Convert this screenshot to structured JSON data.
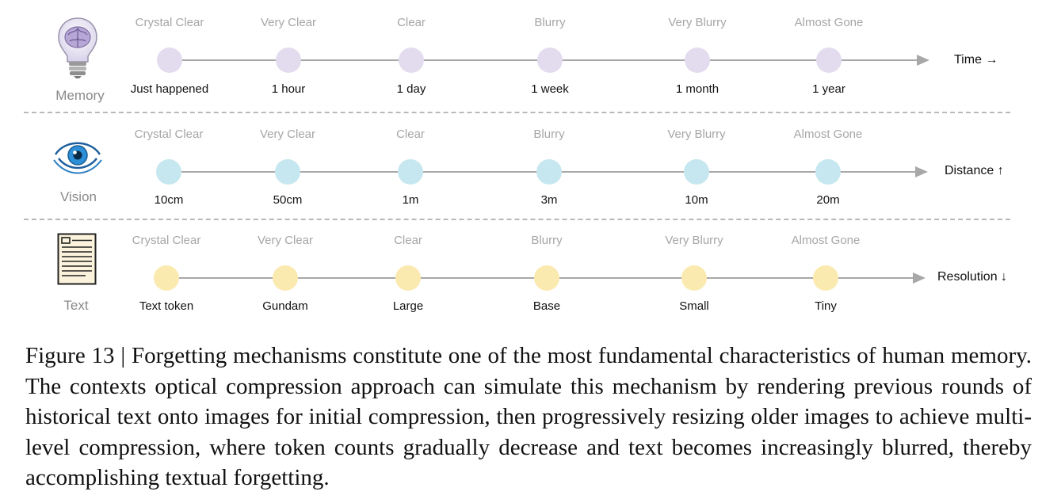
{
  "rows": [
    {
      "name": "Memory",
      "icon": "lightbulb-brain-icon",
      "dot_color": "#e3dcef",
      "clarity": [
        "Crystal Clear",
        "Very Clear",
        "Clear",
        "Blurry",
        "Very Blurry",
        "Almost Gone"
      ],
      "scale": [
        "Just happened",
        "1 hour",
        "1 day",
        "1 week",
        "1 month",
        "1 year"
      ],
      "axis_label": "Time →"
    },
    {
      "name": "Vision",
      "icon": "eye-icon",
      "dot_color": "#c6e7ef",
      "clarity": [
        "Crystal Clear",
        "Very Clear",
        "Clear",
        "Blurry",
        "Very Blurry",
        "Almost Gone"
      ],
      "scale": [
        "10cm",
        "50cm",
        "1m",
        "3m",
        "10m",
        "20m"
      ],
      "axis_label": "Distance ↑"
    },
    {
      "name": "Text",
      "icon": "document-icon",
      "dot_color": "#fbeab0",
      "clarity": [
        "Crystal Clear",
        "Very Clear",
        "Clear",
        "Blurry",
        "Very Blurry",
        "Almost Gone"
      ],
      "scale": [
        "Text token",
        "Gundam",
        "Large",
        "Base",
        "Small",
        "Tiny"
      ],
      "axis_label": "Resolution ↓"
    }
  ],
  "caption": "Figure 13 | Forgetting mechanisms constitute one of the most fundamental characteristics of human memory. The contexts optical compression approach can simulate this mechanism by rendering previous rounds of historical text onto images for initial compression, then progressively resizing older images to achieve multi-level compression, where token counts gradually decrease and text becomes increasingly blurred, thereby accomplishing textual forgetting."
}
